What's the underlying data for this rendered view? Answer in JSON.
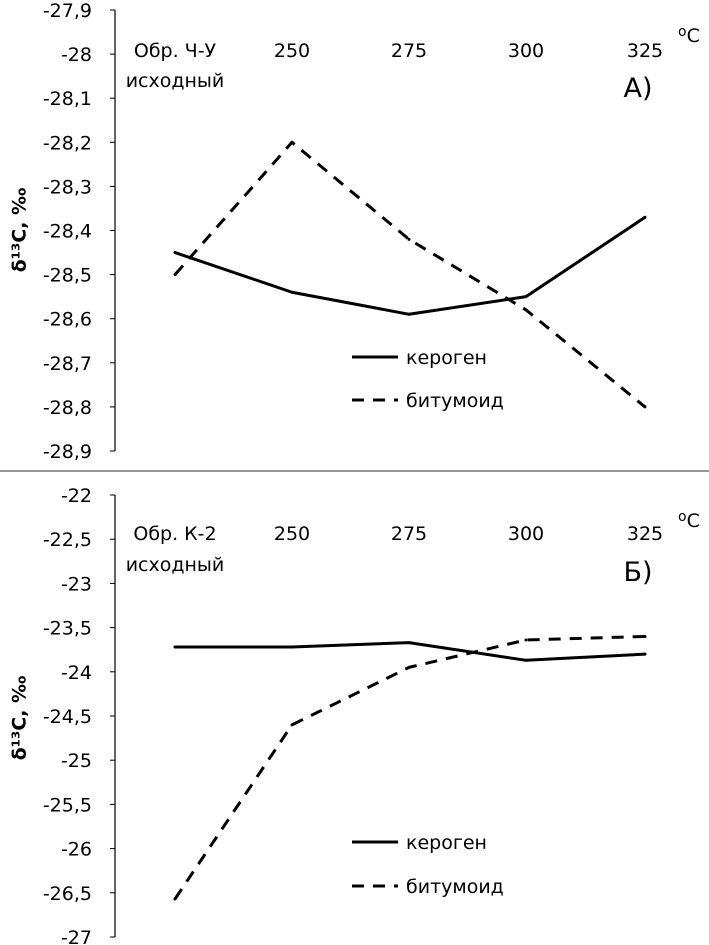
{
  "chart_data": [
    {
      "type": "line",
      "panel_label": "А)",
      "ylabel": "δ¹³C, ‰",
      "x_unit": "oC",
      "categories": [
        "Обр. Ч-У",
        "250",
        "275",
        "300",
        "325"
      ],
      "category_sublabel": "исходный",
      "ylim": [
        -28.9,
        -27.9
      ],
      "yticks": [
        "-27,9",
        "-28",
        "-28,1",
        "-28,2",
        "-28,3",
        "-28,4",
        "-28,5",
        "-28,6",
        "-28,7",
        "-28,8",
        "-28,9"
      ],
      "series": [
        {
          "name": "кероген",
          "style": "solid",
          "values": [
            -28.45,
            -28.54,
            -28.59,
            -28.55,
            -28.37
          ]
        },
        {
          "name": "битумоид",
          "style": "dashed",
          "values": [
            -28.5,
            -28.2,
            -28.42,
            -28.58,
            -28.8
          ]
        }
      ],
      "legend_position": "lower-middle",
      "grid": false
    },
    {
      "type": "line",
      "panel_label": "Б)",
      "ylabel": "δ¹³C, ‰",
      "x_unit": "oC",
      "categories": [
        "Обр. К-2",
        "250",
        "275",
        "300",
        "325"
      ],
      "category_sublabel": "исходный",
      "ylim": [
        -27,
        -22
      ],
      "yticks": [
        "-22",
        "-22,5",
        "-23",
        "-23,5",
        "-24",
        "-24,5",
        "-25",
        "-25,5",
        "-26",
        "-26,5",
        "-27"
      ],
      "series": [
        {
          "name": "кероген",
          "style": "solid",
          "values": [
            -23.72,
            -23.72,
            -23.67,
            -23.87,
            -23.8
          ]
        },
        {
          "name": "битумоид",
          "style": "dashed",
          "values": [
            -26.57,
            -24.6,
            -23.95,
            -23.64,
            -23.6
          ]
        }
      ],
      "legend_position": "lower-middle",
      "grid": false
    }
  ]
}
